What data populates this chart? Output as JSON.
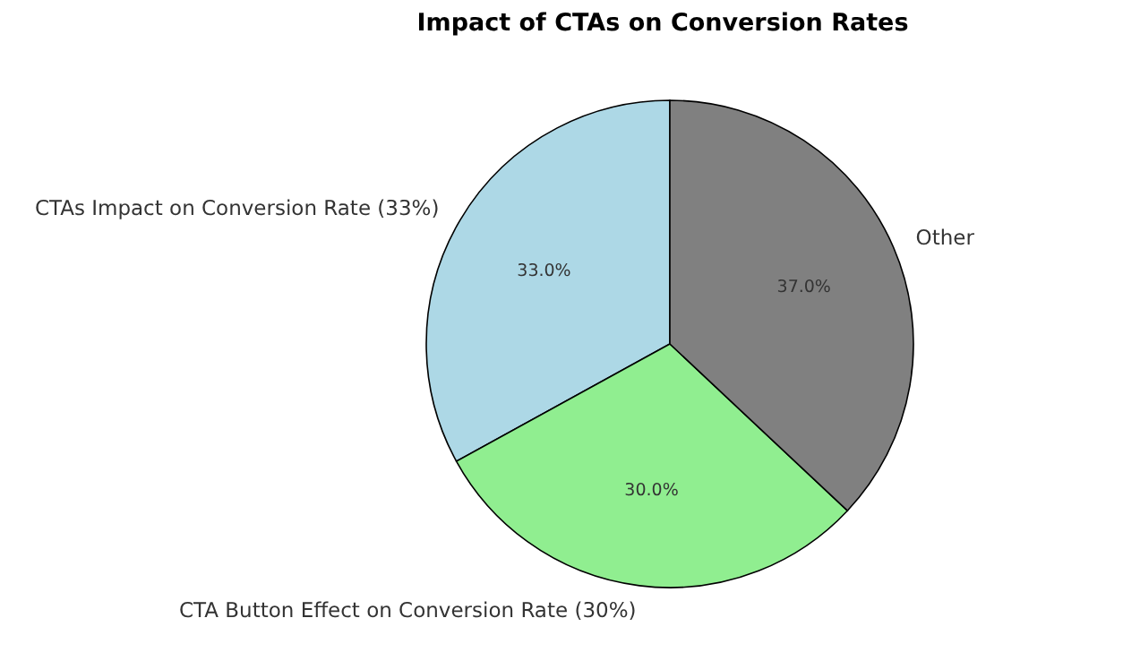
{
  "chart_data": {
    "type": "pie",
    "title": "Impact of CTAs on Conversion Rates",
    "categories": [
      "CTAs Impact on Conversion Rate (33%)",
      "CTA Button Effect on Conversion Rate (30%)",
      "Other"
    ],
    "values": [
      33,
      30,
      37
    ],
    "colors": [
      "#add8e6",
      "#90ee90",
      "#808080"
    ],
    "value_labels": [
      "33.0%",
      "30.0%",
      "37.0%"
    ],
    "legend": false
  }
}
